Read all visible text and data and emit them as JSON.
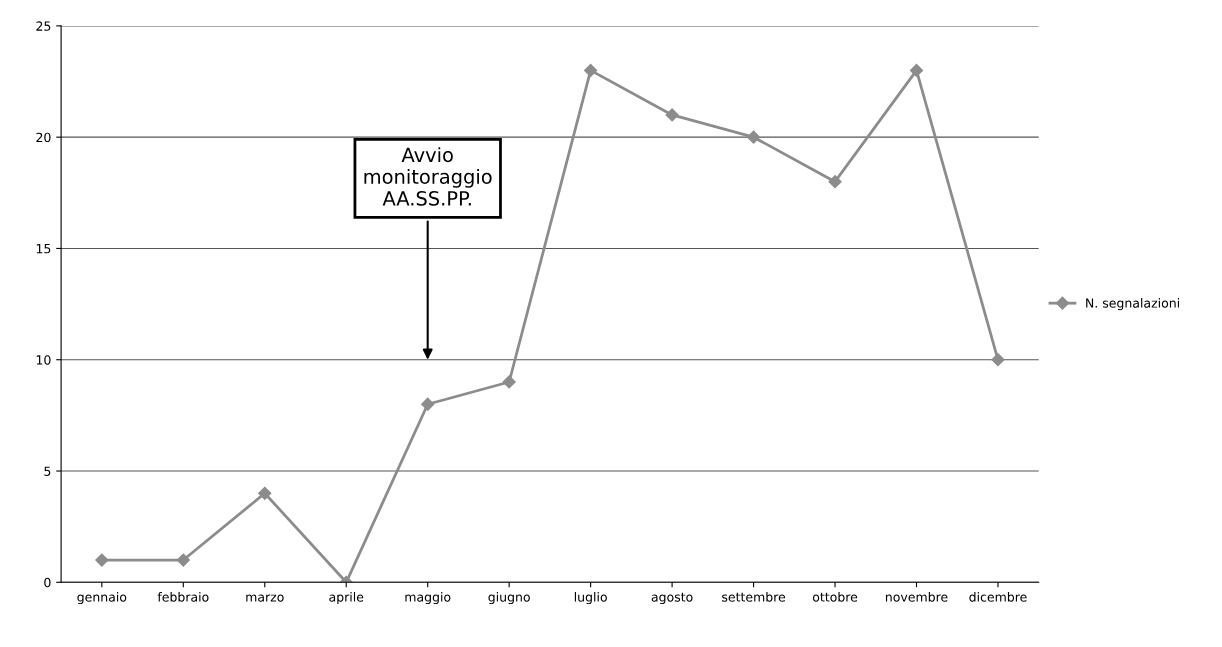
{
  "chart_data": {
    "type": "line",
    "categories": [
      "gennaio",
      "febbraio",
      "marzo",
      "aprile",
      "maggio",
      "giugno",
      "luglio",
      "agosto",
      "settembre",
      "ottobre",
      "novembre",
      "dicembre"
    ],
    "series": [
      {
        "name": "N. segnalazioni",
        "color": "#8c8c8c",
        "values": [
          1,
          1,
          4,
          0,
          8,
          9,
          23,
          21,
          20,
          18,
          23,
          10
        ]
      }
    ],
    "ylim": [
      0,
      25
    ],
    "yticks": [
      0,
      5,
      10,
      15,
      20,
      25
    ],
    "grid": "y",
    "legend": "right",
    "marker": "diamond",
    "line_style": "solid",
    "annotations": [
      "Avvio\nmonitoraggio\nAA.SS.PP."
    ]
  }
}
